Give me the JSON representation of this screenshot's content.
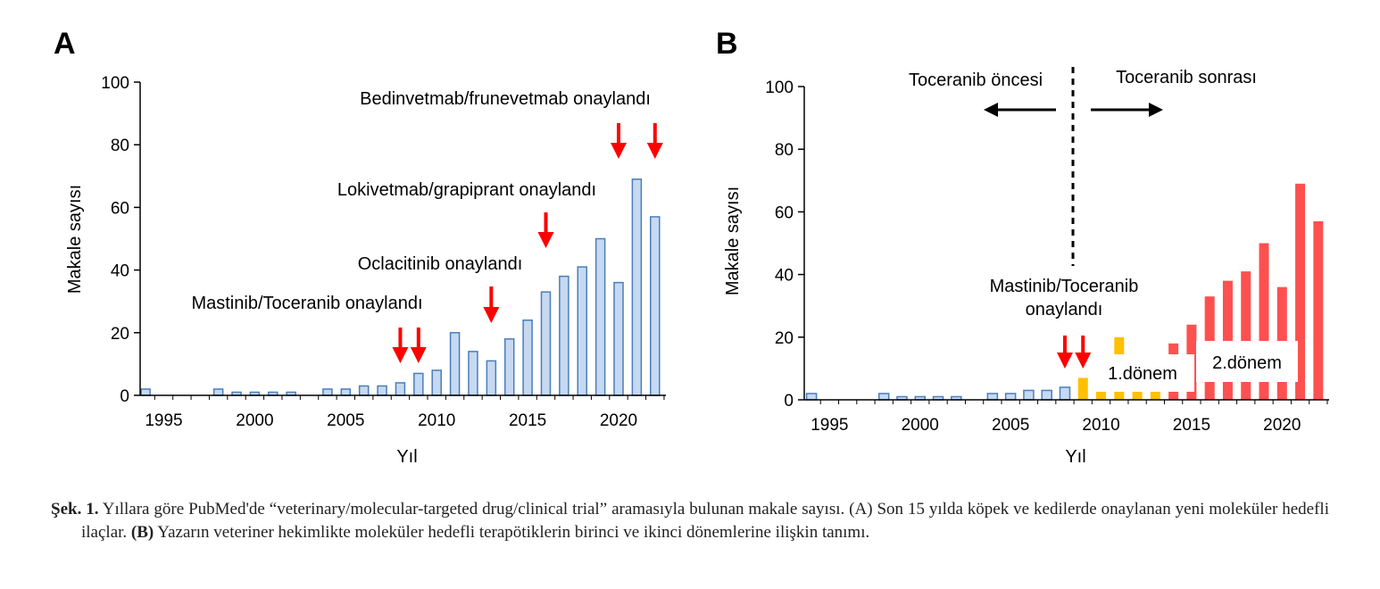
{
  "chart_data": [
    {
      "type": "bar",
      "panel": "A",
      "xlabel": "Yıl",
      "ylabel": "Makale sayısı",
      "ylim": [
        0,
        100
      ],
      "yticks": [
        0,
        20,
        40,
        60,
        80,
        100
      ],
      "xticks": [
        1995,
        2000,
        2005,
        2010,
        2015,
        2020
      ],
      "x": [
        1994,
        1995,
        1996,
        1997,
        1998,
        1999,
        2000,
        2001,
        2002,
        2003,
        2004,
        2005,
        2006,
        2007,
        2008,
        2009,
        2010,
        2011,
        2012,
        2013,
        2014,
        2015,
        2016,
        2017,
        2018,
        2019,
        2020,
        2021,
        2022
      ],
      "values": [
        2,
        0,
        0,
        0,
        2,
        1,
        1,
        1,
        1,
        0,
        2,
        2,
        3,
        3,
        4,
        7,
        8,
        20,
        14,
        11,
        18,
        24,
        33,
        38,
        41,
        50,
        36,
        69,
        57
      ],
      "colors": {
        "bar_fill": "#c6d9f1",
        "bar_stroke": "#4a7ebb",
        "arrow": "#ff0000"
      },
      "annotations": [
        {
          "text": "Bedinvetmab/frunevetmab onaylandı",
          "arrows_at": [
            2020,
            2022
          ]
        },
        {
          "text": "Lokivetmab/grapiprant onaylandı",
          "arrows_at": [
            2016
          ]
        },
        {
          "text": "Oclacitinib onaylandı",
          "arrows_at": [
            2013
          ]
        },
        {
          "text": "Mastinib/Toceranib onaylandı",
          "arrows_at": [
            2008,
            2009
          ]
        }
      ]
    },
    {
      "type": "bar",
      "panel": "B",
      "xlabel": "Yıl",
      "ylabel": "Makale sayısı",
      "ylim": [
        0,
        100
      ],
      "yticks": [
        0,
        20,
        40,
        60,
        80,
        100
      ],
      "xticks": [
        1995,
        2000,
        2005,
        2010,
        2015,
        2020
      ],
      "x": [
        1994,
        1995,
        1996,
        1997,
        1998,
        1999,
        2000,
        2001,
        2002,
        2003,
        2004,
        2005,
        2006,
        2007,
        2008,
        2009,
        2010,
        2011,
        2012,
        2013,
        2014,
        2015,
        2016,
        2017,
        2018,
        2019,
        2020,
        2021,
        2022
      ],
      "values": [
        2,
        0,
        0,
        0,
        2,
        1,
        1,
        1,
        1,
        0,
        2,
        2,
        3,
        3,
        4,
        7,
        8,
        20,
        14,
        11,
        18,
        24,
        33,
        38,
        41,
        50,
        36,
        69,
        57
      ],
      "groups": [
        "pre",
        "pre",
        "pre",
        "pre",
        "pre",
        "pre",
        "pre",
        "pre",
        "pre",
        "pre",
        "pre",
        "pre",
        "pre",
        "pre",
        "pre",
        "first",
        "first",
        "first",
        "first",
        "first",
        "second",
        "second",
        "second",
        "second",
        "second",
        "second",
        "second",
        "second",
        "second"
      ],
      "colors": {
        "pre_fill": "#c6d9f1",
        "pre_stroke": "#4a7ebb",
        "first": "#ffc000",
        "second": "#ff5050",
        "arrow": "#ff0000"
      },
      "divider_at": 2007.5,
      "labels": {
        "before": "Toceranib öncesi",
        "after": "Toceranib sonrası",
        "approval_line1": "Mastinib/Toceranib",
        "approval_line2": "onaylandı",
        "period1": "1.dönem",
        "period2": "2.dönem"
      },
      "arrows_at": [
        2008,
        2009
      ]
    }
  ],
  "caption": {
    "lead": "Şek. 1.",
    "text_1": " Yıllara göre PubMed'de “veterinary/molecular-targeted drug/clinical trial” aramasıyla bulunan makale sayısı. (A) Son 15 yılda köpek ve kedilerde onaylanan yeni moleküler hedefli ilaçlar. ",
    "bold_b": "(B)",
    "text_2": " Yazarın veteriner hekimlikte moleküler hedefli terapötiklerin birinci ve ikinci dönemlerine ilişkin tanımı."
  }
}
